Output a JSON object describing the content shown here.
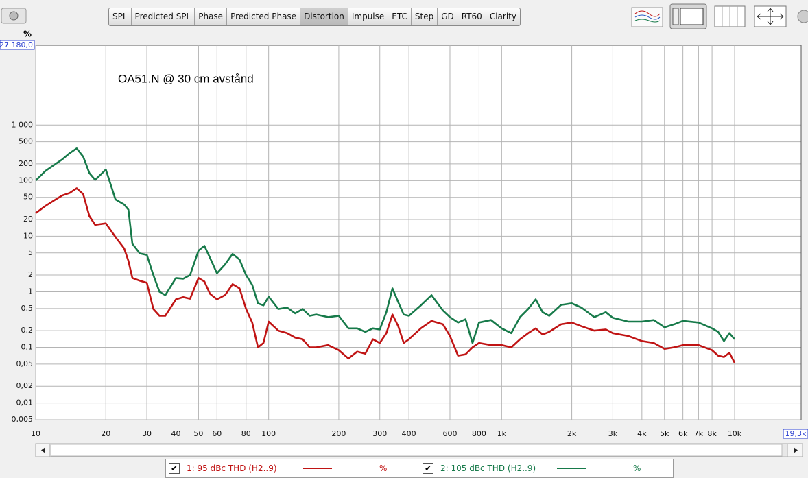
{
  "toolbar": {
    "buttons": [
      "SPL",
      "Predicted SPL",
      "Phase",
      "Predicted Phase",
      "Distortion",
      "Impulse",
      "ETC",
      "Step",
      "GD",
      "RT60",
      "Clarity"
    ],
    "active": 4
  },
  "chart_data": {
    "type": "line",
    "log_x": true,
    "log_y": true,
    "grid": true,
    "ylabel": "%",
    "annotation": "OA51.N @ 30 cm avstånd",
    "xlim": [
      10,
      19300
    ],
    "ylim": [
      0.005,
      27180
    ],
    "xticks": [
      10,
      20,
      30,
      40,
      50,
      60,
      80,
      100,
      200,
      300,
      400,
      600,
      800,
      {
        "value": 1000,
        "label": "1k"
      },
      {
        "value": 2000,
        "label": "2k"
      },
      {
        "value": 3000,
        "label": "3k"
      },
      {
        "value": 4000,
        "label": "4k"
      },
      {
        "value": 5000,
        "label": "5k"
      },
      {
        "value": 6000,
        "label": "6k"
      },
      {
        "value": 7000,
        "label": "7k"
      },
      {
        "value": 8000,
        "label": "8k"
      },
      {
        "value": 10000,
        "label": "10k"
      },
      {
        "value": 19300,
        "label": "19,3k"
      }
    ],
    "yticks": [
      {
        "value": 27180,
        "label": "27 180,0"
      },
      {
        "value": 1000,
        "label": "1 000"
      },
      500,
      200,
      100,
      50,
      20,
      10,
      5,
      2,
      1,
      {
        "value": 0.5,
        "label": "0,5"
      },
      {
        "value": 0.2,
        "label": "0,2"
      },
      {
        "value": 0.1,
        "label": "0,1"
      },
      {
        "value": 0.05,
        "label": "0,05"
      },
      {
        "value": 0.02,
        "label": "0,02"
      },
      {
        "value": 0.01,
        "label": "0,01"
      },
      {
        "value": 0.005,
        "label": "0,005"
      }
    ],
    "x": [
      10,
      11,
      12,
      13,
      14,
      15,
      16,
      17,
      18,
      20,
      22,
      24,
      25,
      26,
      28,
      30,
      32,
      34,
      36,
      40,
      43,
      46,
      50,
      53,
      56,
      60,
      65,
      70,
      75,
      80,
      85,
      90,
      95,
      100,
      110,
      120,
      130,
      140,
      150,
      160,
      180,
      200,
      220,
      240,
      260,
      280,
      300,
      320,
      340,
      360,
      380,
      400,
      450,
      500,
      560,
      600,
      650,
      700,
      750,
      800,
      900,
      1000,
      1100,
      1200,
      1300,
      1400,
      1500,
      1600,
      1800,
      2000,
      2200,
      2500,
      2800,
      3000,
      3500,
      4000,
      4500,
      5000,
      5500,
      6000,
      7000,
      8000,
      8500,
      9000,
      9500,
      10000
    ],
    "series": [
      {
        "name": "1: 95 dBc THD (H2..9)",
        "unit": "%",
        "color": "#c01414",
        "values": [
          26,
          35,
          44,
          54,
          60,
          73,
          57,
          23,
          16,
          17,
          9.7,
          6.0,
          3.6,
          1.77,
          1.58,
          1.45,
          0.49,
          0.37,
          0.37,
          0.73,
          0.8,
          0.75,
          1.77,
          1.53,
          0.92,
          0.73,
          0.87,
          1.37,
          1.15,
          0.49,
          0.28,
          0.1,
          0.12,
          0.29,
          0.2,
          0.18,
          0.15,
          0.14,
          0.1,
          0.1,
          0.11,
          0.089,
          0.063,
          0.084,
          0.077,
          0.14,
          0.12,
          0.18,
          0.39,
          0.24,
          0.12,
          0.14,
          0.22,
          0.3,
          0.26,
          0.16,
          0.071,
          0.075,
          0.1,
          0.12,
          0.11,
          0.11,
          0.1,
          0.14,
          0.18,
          0.22,
          0.17,
          0.19,
          0.26,
          0.28,
          0.24,
          0.2,
          0.21,
          0.18,
          0.16,
          0.13,
          0.12,
          0.094,
          0.1,
          0.11,
          0.11,
          0.089,
          0.071,
          0.067,
          0.08,
          0.053
        ]
      },
      {
        "name": "2: 105 dBc THD (H2..9)",
        "unit": "%",
        "color": "#177a4a",
        "values": [
          100,
          149,
          192,
          241,
          312,
          380,
          270,
          137,
          103,
          158,
          46,
          37,
          30,
          7.3,
          4.9,
          4.6,
          2.0,
          1.0,
          0.87,
          1.77,
          1.72,
          2.0,
          5.5,
          6.7,
          4.1,
          2.15,
          3.1,
          4.8,
          3.8,
          2.0,
          1.33,
          0.62,
          0.57,
          0.82,
          0.49,
          0.52,
          0.41,
          0.49,
          0.37,
          0.39,
          0.35,
          0.37,
          0.22,
          0.22,
          0.19,
          0.22,
          0.21,
          0.43,
          1.15,
          0.65,
          0.39,
          0.37,
          0.57,
          0.87,
          0.46,
          0.35,
          0.28,
          0.32,
          0.12,
          0.28,
          0.31,
          0.22,
          0.18,
          0.35,
          0.49,
          0.73,
          0.43,
          0.37,
          0.58,
          0.62,
          0.52,
          0.35,
          0.43,
          0.34,
          0.29,
          0.29,
          0.31,
          0.23,
          0.26,
          0.3,
          0.28,
          0.22,
          0.19,
          0.13,
          0.18,
          0.14
        ]
      }
    ]
  }
}
